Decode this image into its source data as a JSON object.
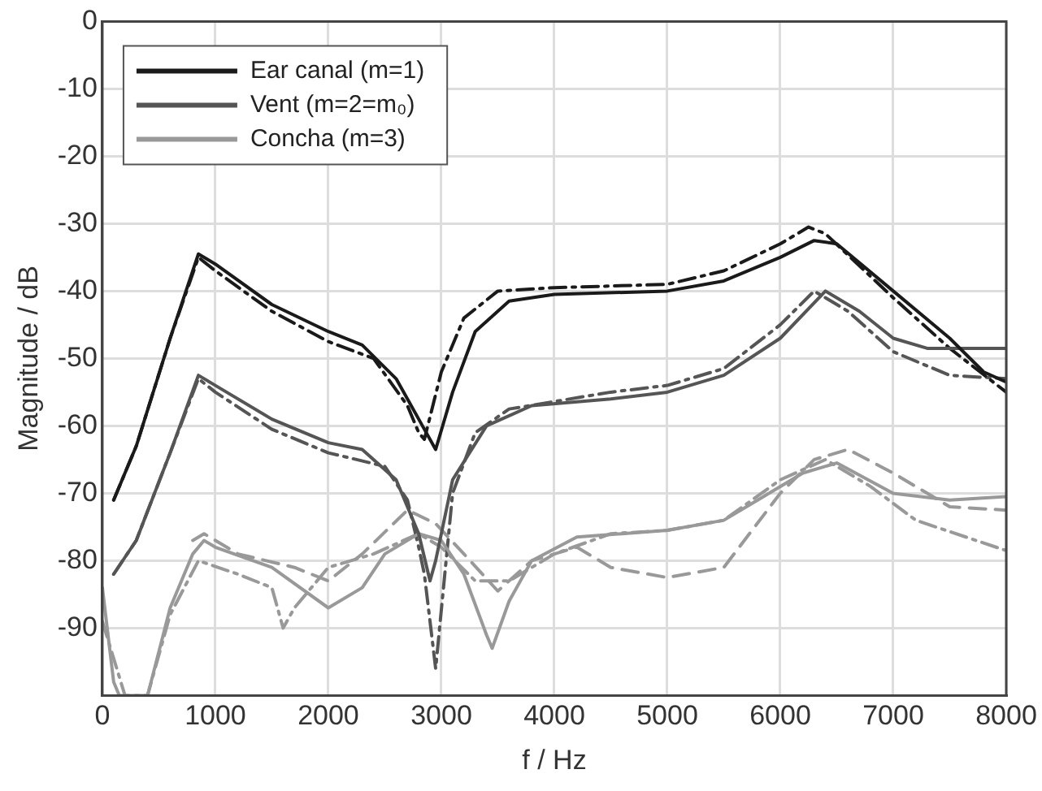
{
  "chart_data": {
    "type": "line",
    "xlabel": "f / Hz",
    "ylabel": "Magnitude / dB",
    "xlim": [
      0,
      8000
    ],
    "xticks": [
      0,
      1000,
      2000,
      3000,
      4000,
      5000,
      6000,
      7000,
      8000
    ],
    "ylim": [
      -100,
      0
    ],
    "yticks": [
      {
        "value": -100,
        "label": null
      },
      -90,
      -80,
      -70,
      -60,
      -50,
      -40,
      -30,
      -20,
      -10,
      0
    ],
    "grid": true,
    "legend": "top left",
    "marker": "none",
    "series": [
      {
        "name": "Ear canal (m=1)",
        "color": "#1a1a1a",
        "line_style": "solid",
        "x": [
          100,
          300,
          600,
          850,
          1000,
          1500,
          2000,
          2300,
          2600,
          2800,
          2950,
          3100,
          3300,
          3600,
          4000,
          5000,
          5500,
          6000,
          6300,
          6500,
          7000,
          7500,
          7800,
          8000
        ],
        "values": [
          -71,
          -63,
          -47,
          -34.5,
          -36,
          -42,
          -46,
          -48,
          -53,
          -59,
          -63.5,
          -55,
          -46,
          -41.5,
          -40.5,
          -40,
          -38.5,
          -35,
          -32.5,
          -33,
          -40,
          -47,
          -52,
          -53.5
        ]
      },
      {
        "name": "Vent (m=2=m₀)",
        "color": "#555555",
        "line_style": "solid",
        "x": [
          100,
          300,
          600,
          850,
          1000,
          1500,
          2000,
          2300,
          2600,
          2800,
          2900,
          2950,
          3100,
          3400,
          3800,
          4500,
          5000,
          5500,
          6000,
          6400,
          6700,
          7000,
          7300,
          8000
        ],
        "values": [
          -82,
          -77,
          -64,
          -52.5,
          -54,
          -59,
          -62.5,
          -63.5,
          -68,
          -76,
          -83,
          -80,
          -68,
          -60,
          -57,
          -56,
          -55,
          -52.5,
          -47,
          -40,
          -43,
          -47,
          -48.5,
          -48.5
        ]
      },
      {
        "name": "Concha (m=3)",
        "color": "#999999",
        "line_style": "solid",
        "x": [
          0,
          100,
          150,
          400,
          600,
          800,
          900,
          1000,
          1500,
          2000,
          2300,
          2500,
          2800,
          3000,
          3200,
          3400,
          3450,
          3600,
          3800,
          4200,
          5000,
          5500,
          5800,
          6200,
          6500,
          7000,
          7500,
          8000
        ],
        "values": [
          -84,
          -98,
          -100,
          -100,
          -87,
          -79,
          -77,
          -78,
          -81,
          -87,
          -84,
          -79,
          -76,
          -77,
          -82,
          -91,
          -93,
          -86,
          -80,
          -76.5,
          -75.5,
          -74,
          -71,
          -67,
          -65.5,
          -70,
          -71,
          -70.5
        ]
      },
      {
        "color": "#1a1a1a",
        "line_style": "dashdot",
        "x": [
          100,
          300,
          600,
          850,
          1000,
          1500,
          2000,
          2400,
          2700,
          2800,
          2850,
          3000,
          3200,
          3500,
          4000,
          5000,
          5500,
          6000,
          6250,
          6400,
          7000,
          7500,
          8000
        ],
        "values": [
          -71,
          -63,
          -47,
          -35,
          -37,
          -43,
          -47.5,
          -50,
          -57,
          -61,
          -62,
          -52,
          -44,
          -40,
          -39.5,
          -39,
          -37,
          -33,
          -30.5,
          -31.5,
          -41,
          -48.5,
          -55
        ]
      },
      {
        "color": "#555555",
        "line_style": "dashdot",
        "x": [
          100,
          300,
          600,
          850,
          1000,
          1500,
          2000,
          2500,
          2700,
          2800,
          2850,
          2950,
          3100,
          3300,
          3600,
          4500,
          5000,
          5500,
          6000,
          6300,
          6600,
          7000,
          7500,
          8000
        ],
        "values": [
          -82,
          -77,
          -64,
          -53,
          -55,
          -60.5,
          -64,
          -66,
          -71,
          -78,
          -82,
          -96,
          -70,
          -61,
          -57.5,
          -55,
          -54,
          -51.5,
          -45,
          -40,
          -43,
          -49,
          -52.5,
          -53
        ]
      },
      {
        "color": "#999999",
        "line_style": "dashed",
        "x": [
          800,
          900,
          1200,
          1700,
          2000,
          2300,
          2700,
          2950,
          3200,
          3500,
          3800,
          4200,
          4500,
          5000,
          5500,
          6000,
          6300,
          6600,
          7000,
          7500,
          8000
        ],
        "values": [
          -77,
          -76,
          -79,
          -81,
          -83,
          -79,
          -72.5,
          -74.5,
          -79,
          -84.5,
          -80,
          -78,
          -81,
          -82.5,
          -81,
          -70,
          -65,
          -63.5,
          -67,
          -72,
          -72.5
        ]
      },
      {
        "color": "#999999",
        "line_style": "dashdot",
        "x": [
          0,
          200,
          400,
          600,
          850,
          1200,
          1500,
          1600,
          1700,
          2000,
          2400,
          2800,
          3000,
          3300,
          3600,
          4000,
          4500,
          5000,
          5500,
          6000,
          6400,
          6800,
          7200,
          8000
        ],
        "values": [
          -89,
          -100,
          -100,
          -88,
          -80,
          -82,
          -84,
          -90,
          -87,
          -81,
          -79,
          -76,
          -78,
          -83,
          -83,
          -79,
          -76,
          -75.5,
          -74,
          -68,
          -65,
          -69,
          -74,
          -78.5
        ]
      }
    ]
  }
}
